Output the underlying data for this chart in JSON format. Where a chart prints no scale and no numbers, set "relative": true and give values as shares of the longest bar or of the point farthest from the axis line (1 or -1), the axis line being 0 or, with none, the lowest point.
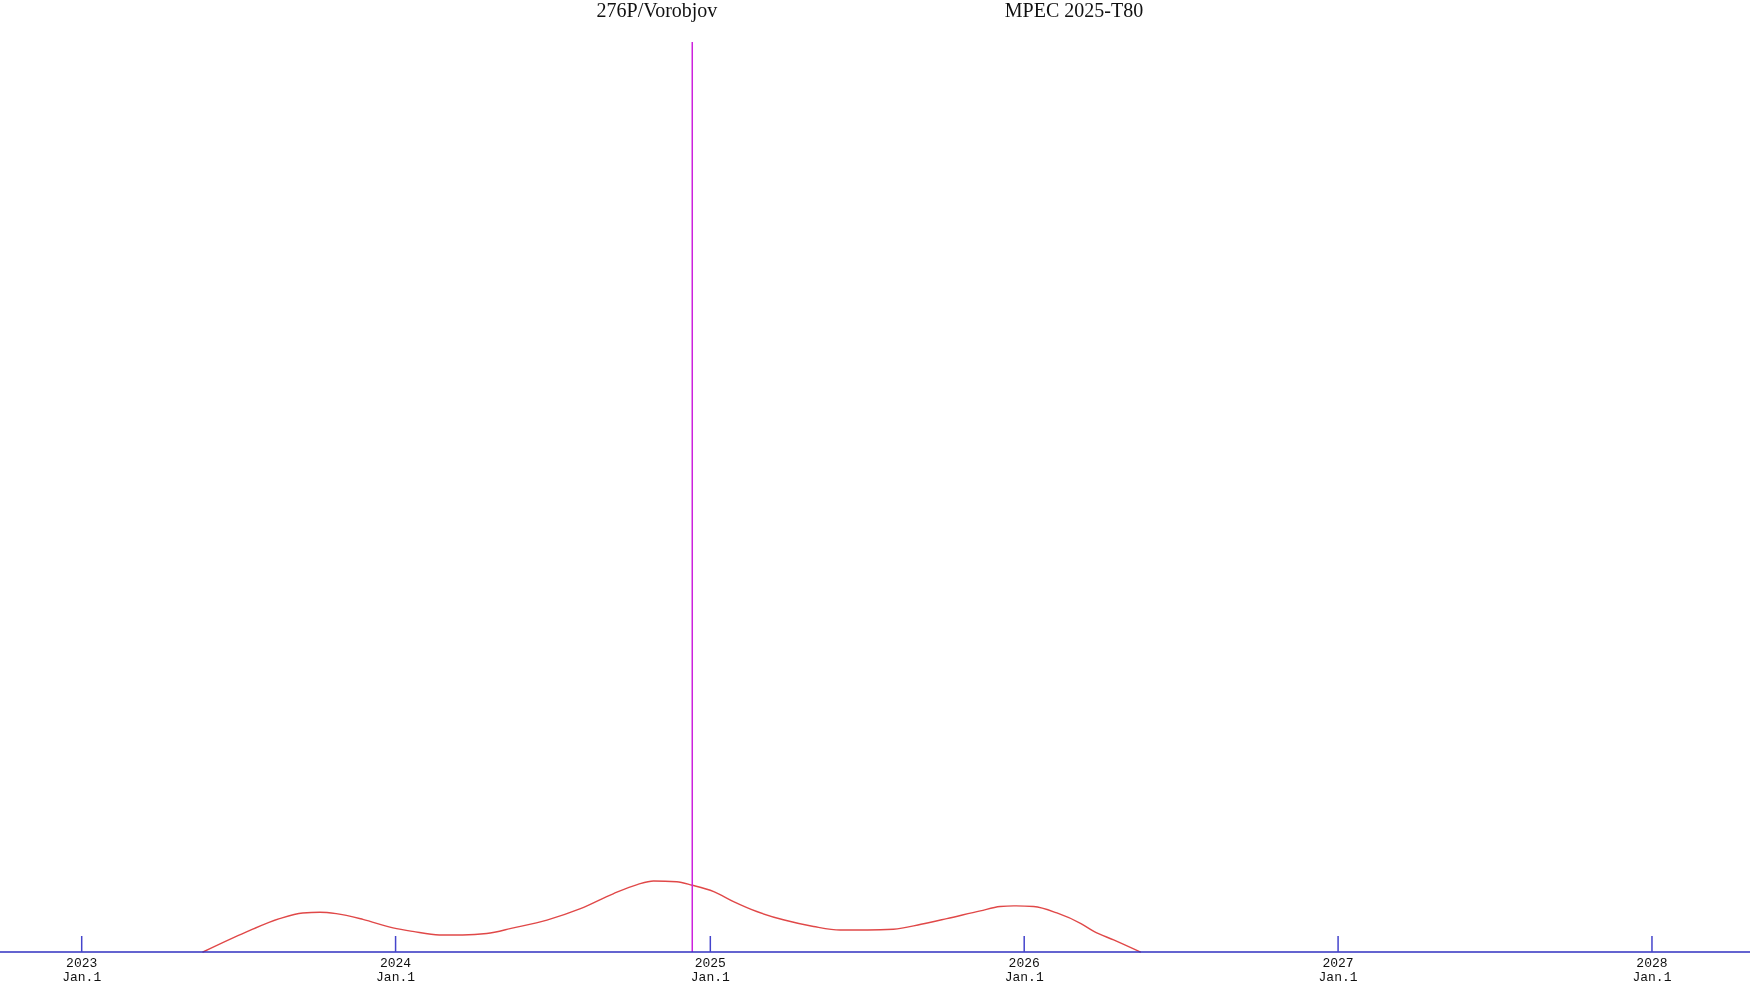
{
  "chart_data": {
    "type": "line",
    "title": "276P/Vorobjov",
    "subtitle": "MPEC 2025-T80",
    "relative": true,
    "x": [
      "2023-05-22",
      "2023-07-11",
      "2023-08-19",
      "2023-09-15",
      "2023-10-05",
      "2023-10-24",
      "2023-11-24",
      "2023-12-29",
      "2024-01-21",
      "2024-02-21",
      "2024-03-19",
      "2024-04-16",
      "2024-05-17",
      "2024-06-25",
      "2024-08-03",
      "2024-09-10",
      "2024-10-08",
      "2024-10-27",
      "2024-11-23",
      "2024-12-11",
      "2025-01-05",
      "2025-01-28",
      "2025-02-24",
      "2025-03-28",
      "2025-05-01",
      "2025-06-01",
      "2025-07-03",
      "2025-08-02",
      "2025-09-03",
      "2025-10-03",
      "2025-11-11",
      "2025-12-04",
      "2025-12-20",
      "2026-01-12",
      "2026-02-08",
      "2026-03-08",
      "2026-03-23",
      "2026-04-15",
      "2026-05-16"
    ],
    "series": [
      {
        "color": "#e04848",
        "values": [
          0,
          0.28,
          0.47,
          0.55,
          0.56,
          0.54,
          0.46,
          0.34,
          0.29,
          0.24,
          0.24,
          0.26,
          0.34,
          0.45,
          0.61,
          0.82,
          0.95,
          1,
          0.99,
          0.94,
          0.85,
          0.71,
          0.57,
          0.45,
          0.36,
          0.31,
          0.31,
          0.32,
          0.39,
          0.47,
          0.58,
          0.64,
          0.65,
          0.64,
          0.55,
          0.4,
          0.29,
          0.17,
          0
        ]
      }
    ],
    "xlim": [
      "2022-09-28",
      "2028-04-24"
    ],
    "xticks": [
      {
        "value": "2023-01-01",
        "label": "2023\nJan.1"
      },
      {
        "value": "2024-01-01",
        "label": "2024\nJan.1"
      },
      {
        "value": "2025-01-01",
        "label": "2025\nJan.1"
      },
      {
        "value": "2026-01-01",
        "label": "2026\nJan.1"
      },
      {
        "value": "2027-01-01",
        "label": "2027\nJan.1"
      },
      {
        "value": "2028-01-01",
        "label": "2028\nJan.1"
      }
    ],
    "ref_lines": [
      {
        "axis": "x",
        "value": "2024-12-11",
        "color": "#cc22dd"
      }
    ]
  }
}
